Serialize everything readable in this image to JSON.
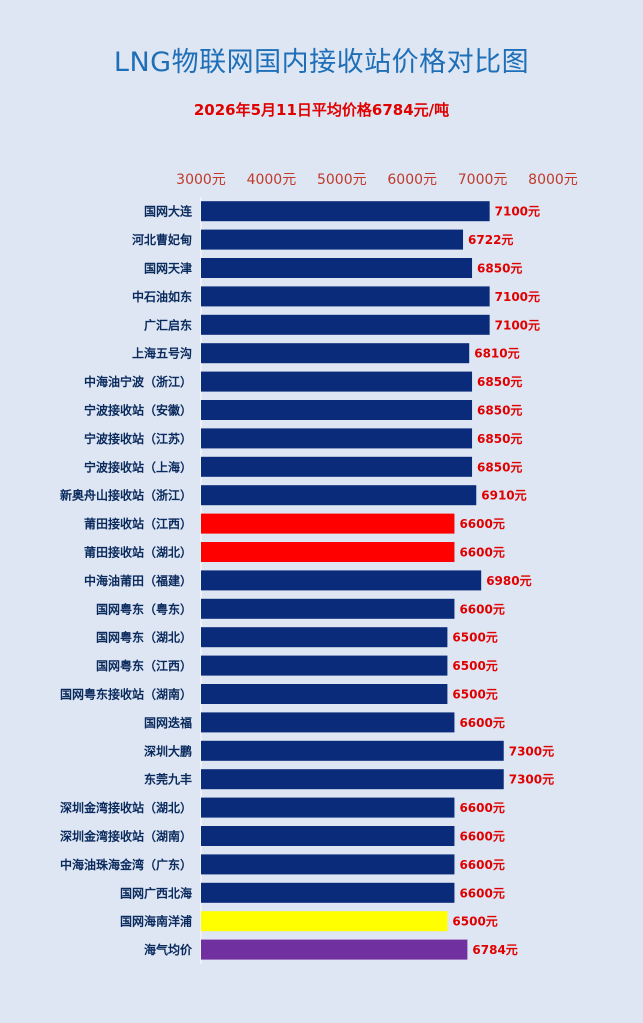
{
  "chart_data": {
    "type": "bar",
    "orientation": "horizontal",
    "title": "LNG物联网国内接收站价格对比图",
    "subtitle": "2026年5月11日平均价格6784元/吨",
    "categories": [
      "国网大连",
      "河北曹妃甸",
      "国网天津",
      "中石油如东",
      "广汇启东",
      "上海五号沟",
      "中海油宁波（浙江）",
      "宁波接收站（安徽）",
      "宁波接收站（江苏）",
      "宁波接收站（上海）",
      "新奥舟山接收站（浙江）",
      "莆田接收站（江西）",
      "莆田接收站（湖北）",
      "中海油莆田（福建）",
      "国网粤东（粤东）",
      "国网粤东（湖北）",
      "国网粤东（江西）",
      "国网粤东接收站（湖南）",
      "国网迭福",
      "深圳大鹏",
      "东莞九丰",
      "深圳金湾接收站（湖北）",
      "深圳金湾接收站（湖南）",
      "中海油珠海金湾（广东）",
      "国网广西北海",
      "国网海南洋浦",
      "海气均价"
    ],
    "values": [
      7100,
      6722,
      6850,
      7100,
      7100,
      6810,
      6850,
      6850,
      6850,
      6850,
      6910,
      6600,
      6600,
      6980,
      6600,
      6500,
      6500,
      6500,
      6600,
      7300,
      7300,
      6600,
      6600,
      6600,
      6600,
      6500,
      6784
    ],
    "value_labels": [
      "7100元",
      "6722元",
      "6850元",
      "7100元",
      "7100元",
      "6810元",
      "6850元",
      "6850元",
      "6850元",
      "6850元",
      "6910元",
      "6600元",
      "6600元",
      "6980元",
      "6600元",
      "6500元",
      "6500元",
      "6500元",
      "6600元",
      "7300元",
      "7300元",
      "6600元",
      "6600元",
      "6600元",
      "6600元",
      "6500元",
      "6784元"
    ],
    "bar_colors": [
      "#0a2a7a",
      "#0a2a7a",
      "#0a2a7a",
      "#0a2a7a",
      "#0a2a7a",
      "#0a2a7a",
      "#0a2a7a",
      "#0a2a7a",
      "#0a2a7a",
      "#0a2a7a",
      "#0a2a7a",
      "#ff0000",
      "#ff0000",
      "#0a2a7a",
      "#0a2a7a",
      "#0a2a7a",
      "#0a2a7a",
      "#0a2a7a",
      "#0a2a7a",
      "#0a2a7a",
      "#0a2a7a",
      "#0a2a7a",
      "#0a2a7a",
      "#0a2a7a",
      "#0a2a7a",
      "#ffff00",
      "#7030a0"
    ],
    "xlim": [
      3000,
      8000
    ],
    "xticks": [
      3000,
      4000,
      5000,
      6000,
      7000,
      8000
    ],
    "xtick_labels": [
      "3000元",
      "4000元",
      "5000元",
      "6000元",
      "7000元",
      "8000元"
    ],
    "xaxis_position": "top",
    "grid": false,
    "legend": false,
    "colors": {
      "title": "#1e6fb8",
      "subtitle": "#e00000",
      "value_label": "#e00000",
      "tick_label": "#c0392b",
      "category_label": "#0a2a5e",
      "background": "#dde6f2"
    }
  }
}
